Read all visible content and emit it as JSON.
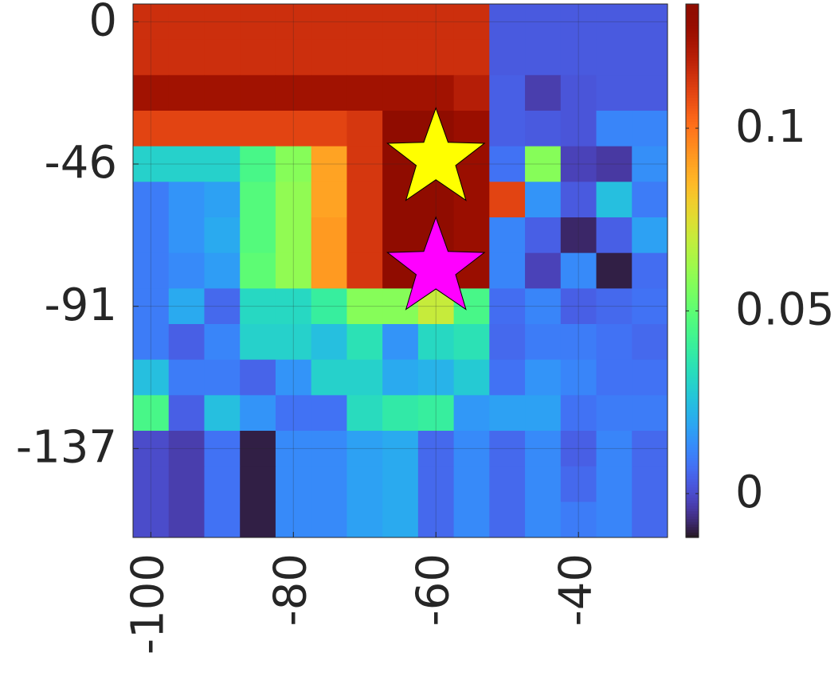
{
  "chart_data": {
    "type": "heatmap",
    "x": [
      -100,
      -95,
      -90,
      -85,
      -80,
      -75,
      -70,
      -65,
      -60,
      -55,
      -50,
      -45,
      -40,
      -35,
      -30
    ],
    "y": [
      0,
      -11.4,
      -22.8,
      -34.2,
      -45.6,
      -57,
      -68.4,
      -79.8,
      -91.2,
      -102.6,
      -114,
      -125.4,
      -136.8,
      -148.2,
      -159.6
    ],
    "z": [
      [
        0.115,
        0.115,
        0.115,
        0.115,
        0.115,
        0.115,
        0.115,
        0.115,
        0.115,
        0.115,
        0.003,
        0.003,
        0.003,
        0.003,
        0.003
      ],
      [
        0.115,
        0.115,
        0.115,
        0.115,
        0.115,
        0.115,
        0.115,
        0.115,
        0.115,
        0.115,
        0.003,
        0.003,
        0.003,
        0.003,
        0.003
      ],
      [
        0.125,
        0.125,
        0.125,
        0.125,
        0.125,
        0.125,
        0.125,
        0.125,
        0.125,
        0.12,
        0.004,
        -0.003,
        0.002,
        0.003,
        0.003
      ],
      [
        0.11,
        0.11,
        0.11,
        0.11,
        0.11,
        0.11,
        0.113,
        0.133,
        0.133,
        0.127,
        0.004,
        0.003,
        0.002,
        0.012,
        0.012
      ],
      [
        0.03,
        0.03,
        0.03,
        0.045,
        0.058,
        0.09,
        0.113,
        0.133,
        0.133,
        0.127,
        0.008,
        0.058,
        -0.002,
        -0.004,
        0.014
      ],
      [
        0.01,
        0.015,
        0.018,
        0.048,
        0.06,
        0.09,
        0.113,
        0.133,
        0.133,
        0.127,
        0.11,
        0.015,
        0.003,
        0.025,
        0.01
      ],
      [
        0.01,
        0.015,
        0.02,
        0.048,
        0.06,
        0.092,
        0.113,
        0.133,
        0.133,
        0.127,
        0.012,
        0.004,
        -0.008,
        0.004,
        0.018
      ],
      [
        0.01,
        0.013,
        0.017,
        0.05,
        0.06,
        0.092,
        0.113,
        0.133,
        0.133,
        0.127,
        0.012,
        -0.002,
        0.013,
        -0.01,
        0.007
      ],
      [
        0.01,
        0.02,
        0.006,
        0.032,
        0.032,
        0.04,
        0.058,
        0.058,
        0.07,
        0.045,
        0.007,
        0.012,
        0.004,
        0.006,
        0.008
      ],
      [
        0.01,
        0.004,
        0.012,
        0.03,
        0.03,
        0.025,
        0.035,
        0.015,
        0.032,
        0.035,
        0.006,
        0.01,
        0.01,
        0.008,
        0.006
      ],
      [
        0.025,
        0.01,
        0.01,
        0.005,
        0.015,
        0.03,
        0.03,
        0.02,
        0.022,
        0.028,
        0.008,
        0.015,
        0.012,
        0.008,
        0.008
      ],
      [
        0.045,
        0.004,
        0.025,
        0.015,
        0.008,
        0.008,
        0.033,
        0.038,
        0.04,
        0.016,
        0.018,
        0.018,
        0.008,
        0.01,
        0.01
      ],
      [
        0,
        -0.003,
        0.008,
        -0.01,
        0.013,
        0.013,
        0.018,
        0.02,
        0.006,
        0.013,
        0.006,
        0.013,
        0.004,
        0.012,
        0.006
      ],
      [
        0,
        -0.003,
        0.008,
        -0.01,
        0.013,
        0.013,
        0.018,
        0.02,
        0.006,
        0.013,
        0.006,
        0.013,
        0.006,
        0.012,
        0.006
      ],
      [
        0,
        -0.003,
        0.008,
        -0.01,
        0.013,
        0.013,
        0.018,
        0.02,
        0.006,
        0.013,
        0.006,
        0.013,
        0.01,
        0.012,
        0.006
      ]
    ],
    "xlim": [
      -102.5,
      -27.5
    ],
    "ylim": [
      -165.3,
      5.7
    ],
    "xticks": [
      -100,
      -80,
      -60,
      -40
    ],
    "yticks": [
      0,
      {
        "value": -45.6,
        "label": "-46"
      },
      {
        "value": -91.2,
        "label": "-91"
      },
      {
        "value": -136.8,
        "label": "-137"
      }
    ],
    "colormap": "turbo",
    "clim": [
      -0.012,
      0.134
    ],
    "cticks": [
      0,
      0.05,
      0.1
    ],
    "grid": true,
    "markers": [
      {
        "x": -60,
        "y": -44,
        "color": "#ffff00"
      },
      {
        "x": -60,
        "y": -79,
        "color": "#ff00ff"
      }
    ]
  }
}
